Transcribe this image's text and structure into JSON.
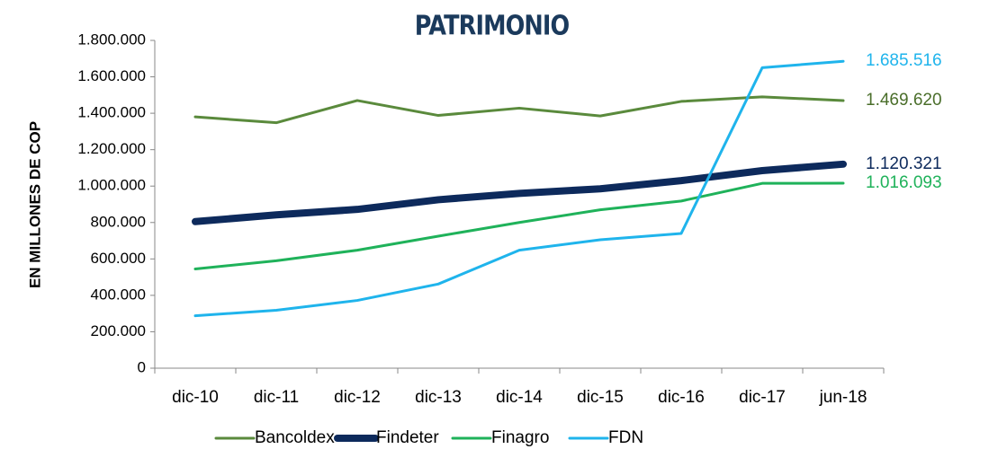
{
  "chart_data": {
    "type": "line",
    "title": "PATRIMONIO",
    "y_label": "EN MILLONES DE COP",
    "categories": [
      "dic-10",
      "dic-11",
      "dic-12",
      "dic-13",
      "dic-14",
      "dic-15",
      "dic-16",
      "dic-17",
      "jun-18"
    ],
    "series": [
      {
        "name": "Bancoldex",
        "color": "#5a8a3c",
        "width": 3,
        "label_color": "#4a6e2a",
        "values": [
          1380000,
          1348000,
          1470000,
          1388000,
          1428000,
          1385000,
          1465000,
          1490000,
          1469620
        ],
        "value_labels": [
          null,
          null,
          null,
          null,
          null,
          null,
          null,
          null,
          "1.469.620"
        ]
      },
      {
        "name": "Findeter",
        "color": "#0d2a5c",
        "width": 8,
        "label_color": "#0d2a5c",
        "values": [
          805000,
          842000,
          872000,
          925000,
          960000,
          985000,
          1030000,
          1085000,
          1120321
        ],
        "value_labels": [
          null,
          null,
          null,
          null,
          null,
          null,
          null,
          null,
          "1.120.321"
        ]
      },
      {
        "name": "Finagro",
        "color": "#1fb25a",
        "width": 3,
        "label_color": "#1fb25a",
        "values": [
          545000,
          590000,
          648000,
          725000,
          800000,
          870000,
          918000,
          1015000,
          1016093
        ],
        "value_labels": [
          null,
          null,
          null,
          null,
          null,
          null,
          null,
          null,
          "1.016.093"
        ]
      },
      {
        "name": "FDN",
        "color": "#1fb4ec",
        "width": 3,
        "label_color": "#1fb4ec",
        "values": [
          288000,
          318000,
          372000,
          462000,
          648000,
          705000,
          740000,
          1650000,
          1685516
        ],
        "value_labels": [
          null,
          null,
          null,
          null,
          null,
          null,
          null,
          null,
          "1.685.516"
        ]
      }
    ],
    "ylim": [
      0,
      1800000
    ],
    "yticks": [
      0,
      {
        "value": 200000,
        "label": "200.000"
      },
      {
        "value": 400000,
        "label": "400.000"
      },
      {
        "value": 600000,
        "label": "600.000"
      },
      {
        "value": 800000,
        "label": "800.000"
      },
      {
        "value": 1000000,
        "label": "1.000.000"
      },
      {
        "value": 1200000,
        "label": "1.200.000"
      },
      {
        "value": 1400000,
        "label": "1.400.000"
      },
      {
        "value": 1600000,
        "label": "1.600.000"
      },
      {
        "value": 1800000,
        "label": "1.800.000"
      }
    ],
    "grid": false,
    "legend": "bottom"
  }
}
